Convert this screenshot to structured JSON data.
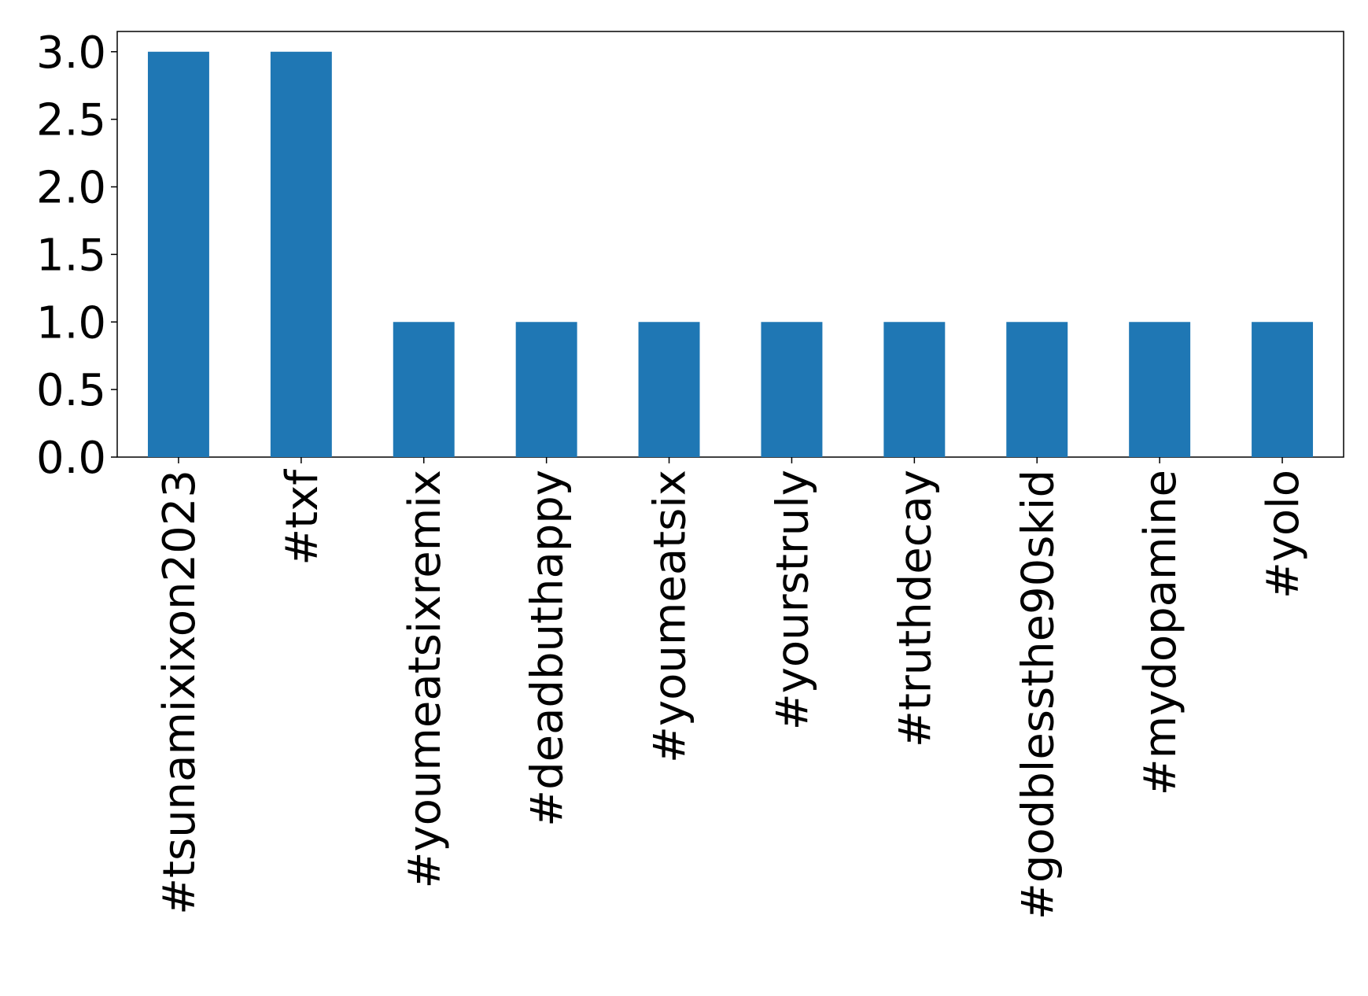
{
  "chart_data": {
    "type": "bar",
    "categories": [
      "#tsunamixixon2023",
      "#txf",
      "#youmeatsixremix",
      "#deadbuthappy",
      "#youmeatsix",
      "#yourstruly",
      "#truthdecay",
      "#godblessthe90skid",
      "#mydopamine",
      "#yolo"
    ],
    "values": [
      3,
      3,
      1,
      1,
      1,
      1,
      1,
      1,
      1,
      1
    ],
    "color": "#1f77b4",
    "ylim": [
      0,
      3.15
    ],
    "yticks": [
      {
        "value": 0,
        "label": "0.0"
      },
      0.5,
      {
        "value": 1,
        "label": "1.0"
      },
      1.5,
      {
        "value": 2,
        "label": "2.0"
      },
      2.5,
      {
        "value": 3,
        "label": "3.0"
      }
    ],
    "grid": false
  }
}
